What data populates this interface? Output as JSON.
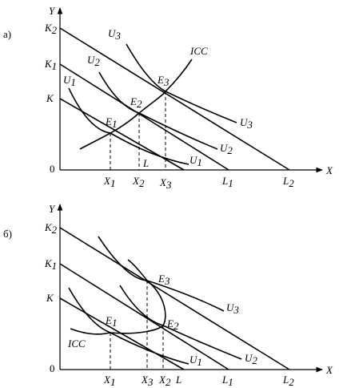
{
  "panel_a": {
    "label": "а)",
    "y_axis": "Y",
    "x_axis": "X",
    "origin": "0",
    "budget_y": [
      {
        "m": "K",
        "s": "2"
      },
      {
        "m": "K",
        "s": "1"
      },
      {
        "m": "K",
        "s": ""
      }
    ],
    "budget_x": [
      {
        "m": "L",
        "s": ""
      },
      {
        "m": "L",
        "s": "1"
      },
      {
        "m": "L",
        "s": "2"
      }
    ],
    "x_ticks": [
      {
        "m": "X",
        "s": "1"
      },
      {
        "m": "X",
        "s": "2"
      },
      {
        "m": "X",
        "s": "3"
      }
    ],
    "points": [
      {
        "m": "E",
        "s": "1"
      },
      {
        "m": "E",
        "s": "2"
      },
      {
        "m": "E",
        "s": "3"
      }
    ],
    "curves": [
      {
        "m": "U",
        "s": "1"
      },
      {
        "m": "U",
        "s": "2"
      },
      {
        "m": "U",
        "s": "3"
      }
    ],
    "icc": "ICC"
  },
  "panel_b": {
    "label": "б)",
    "y_axis": "Y",
    "x_axis": "X",
    "origin": "0",
    "budget_y": [
      {
        "m": "K",
        "s": "2"
      },
      {
        "m": "K",
        "s": "1"
      },
      {
        "m": "K",
        "s": ""
      }
    ],
    "budget_x": [
      {
        "m": "L",
        "s": ""
      },
      {
        "m": "L",
        "s": "1"
      },
      {
        "m": "L",
        "s": "2"
      }
    ],
    "x_ticks": [
      {
        "m": "X",
        "s": "1"
      },
      {
        "m": "X",
        "s": "3"
      },
      {
        "m": "X",
        "s": "2"
      }
    ],
    "points": [
      {
        "m": "E",
        "s": "1"
      },
      {
        "m": "E",
        "s": "2"
      },
      {
        "m": "E",
        "s": "3"
      }
    ],
    "curves": [
      {
        "m": "U",
        "s": "1"
      },
      {
        "m": "U",
        "s": "2"
      },
      {
        "m": "U",
        "s": "3"
      }
    ],
    "icc": "ICC"
  }
}
